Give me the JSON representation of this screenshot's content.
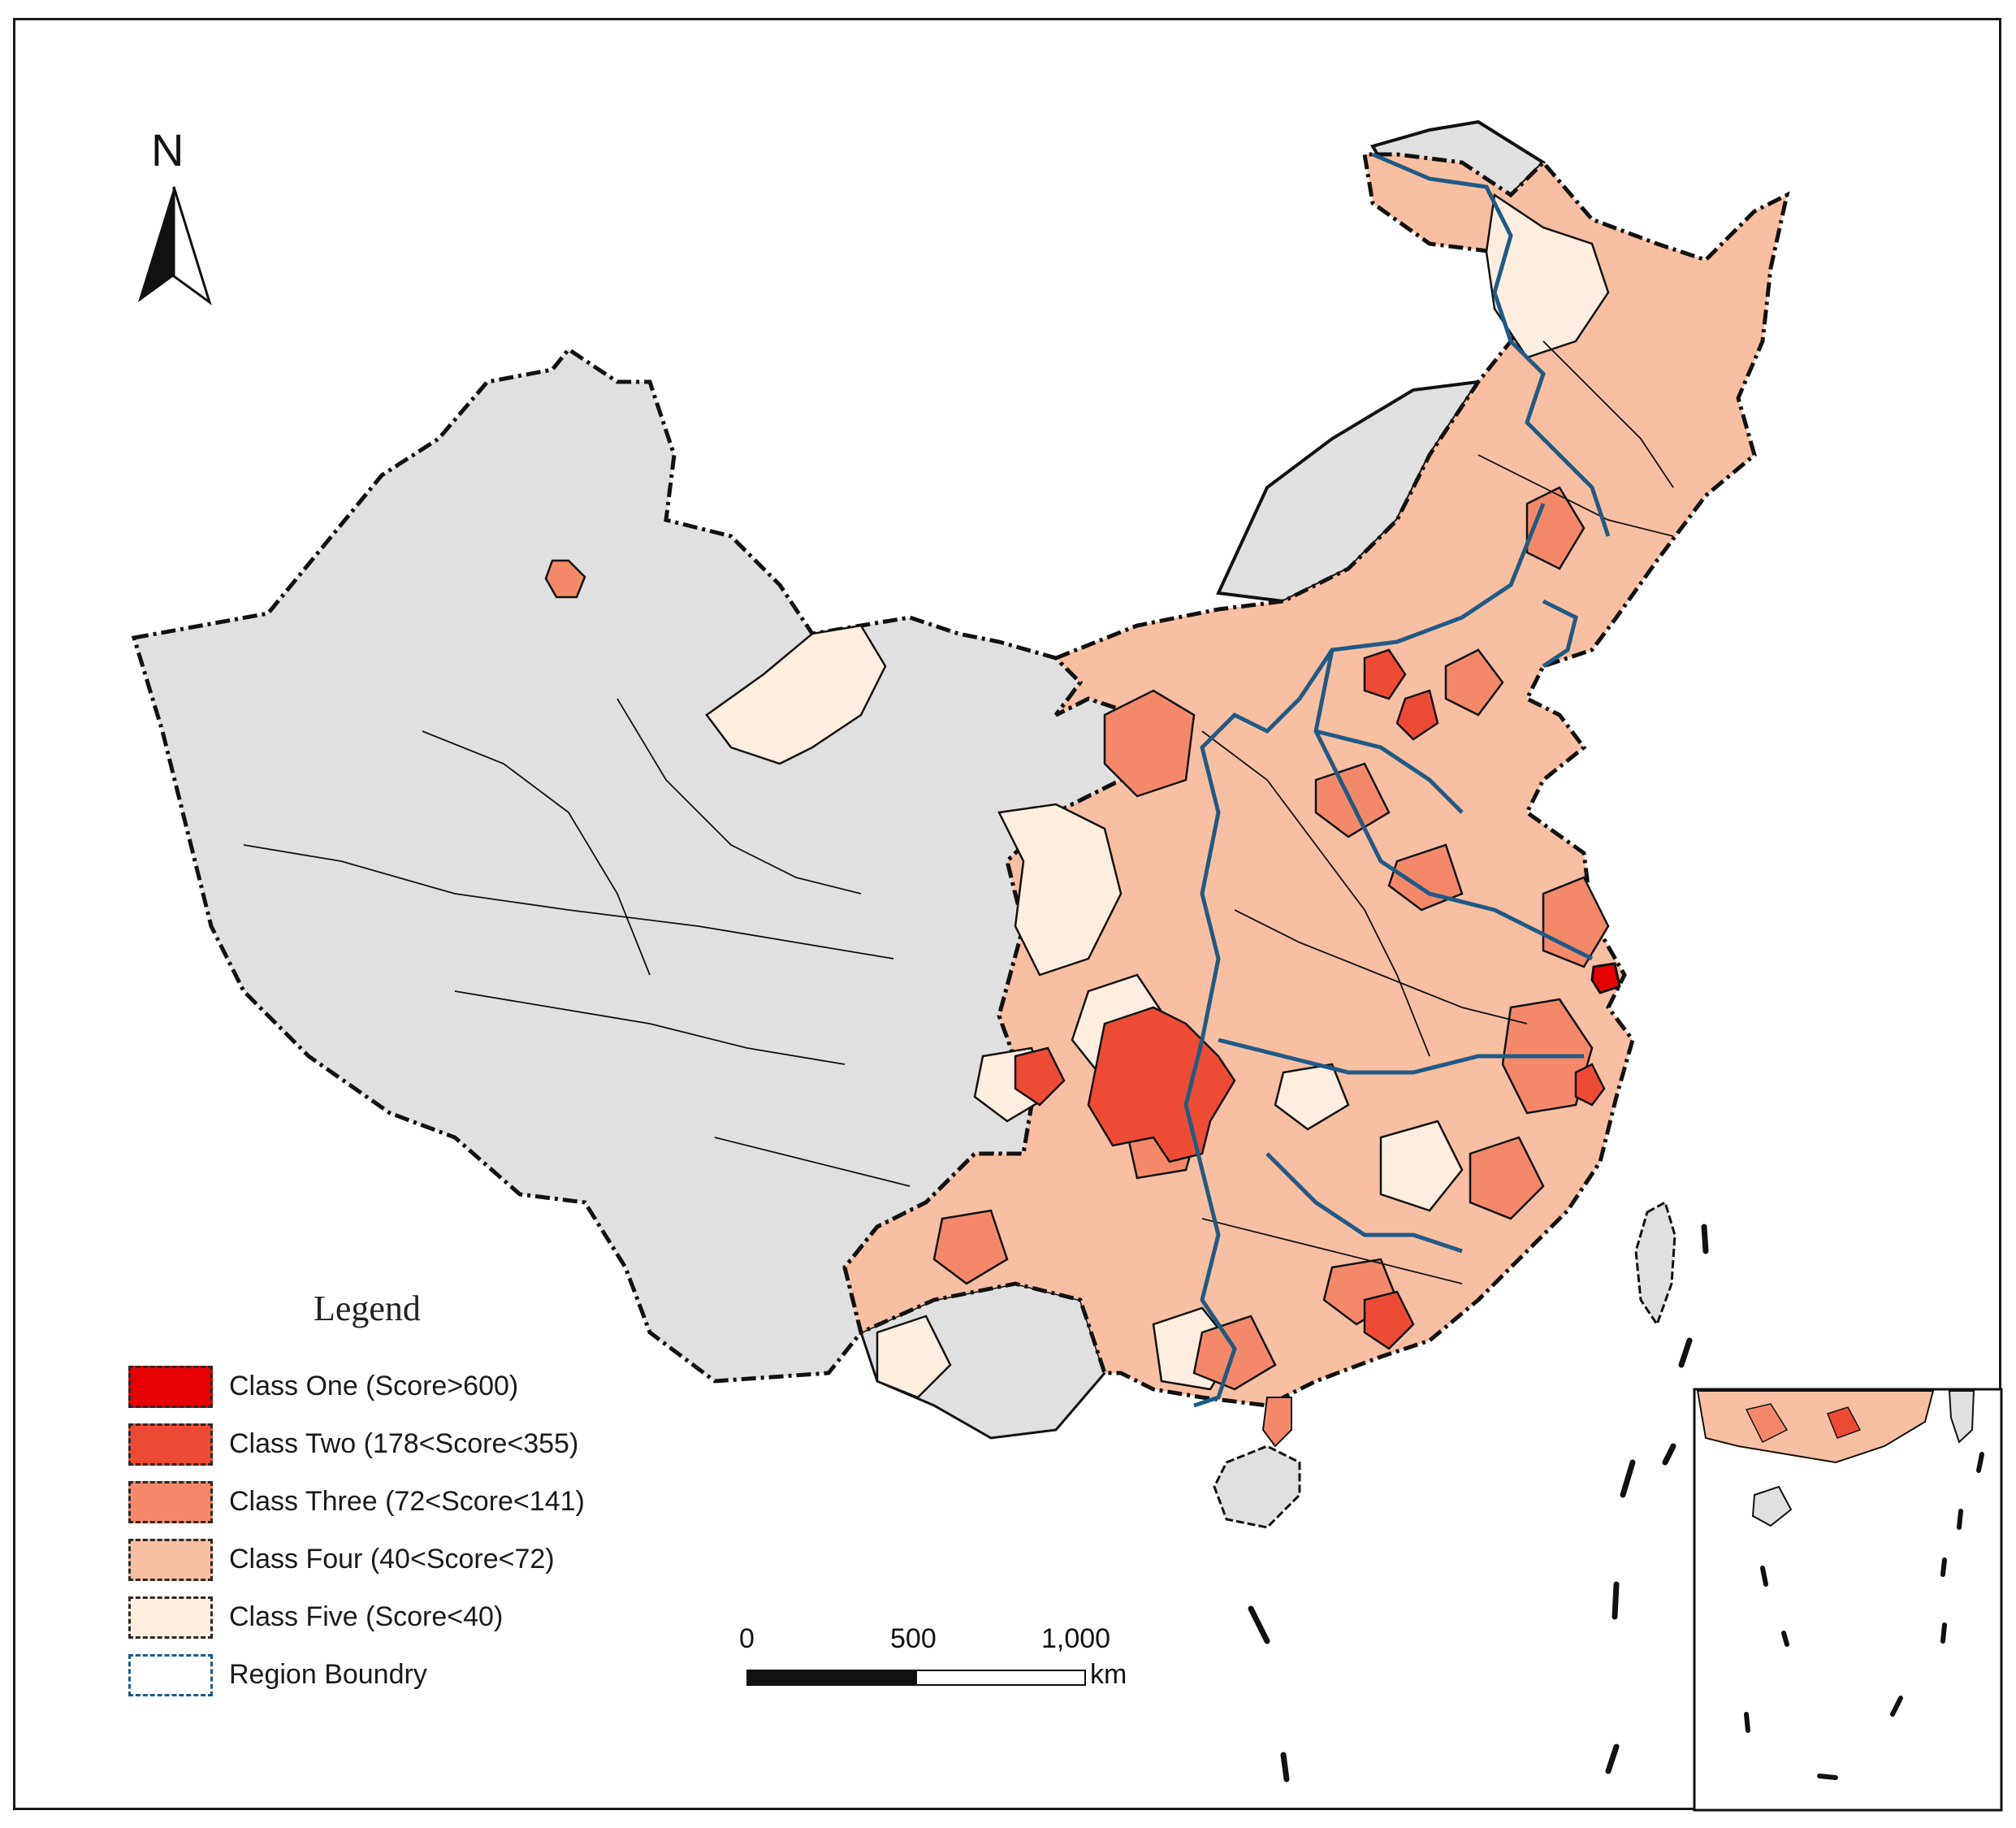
{
  "legend": {
    "title": "Legend",
    "items": [
      {
        "label": "Class One (Score>600)",
        "color": "#e60000",
        "style": "fill"
      },
      {
        "label": "Class Two (178<Score<355)",
        "color": "#ee4b35",
        "style": "fill"
      },
      {
        "label": "Class Three (72<Score<141)",
        "color": "#f4896a",
        "style": "fill"
      },
      {
        "label": "Class Four (40<Score<72)",
        "color": "#f9bfa2",
        "style": "fill"
      },
      {
        "label": "Class Five (Score<40)",
        "color": "#fdeedf",
        "style": "fill"
      },
      {
        "label": "Region Boundry",
        "color": "#1f5a85",
        "style": "outline"
      }
    ]
  },
  "north_arrow": {
    "label": "N"
  },
  "scale_bar": {
    "ticks": [
      "0",
      "500",
      "1,000"
    ],
    "unit": "km"
  },
  "colors": {
    "no_data": "#e0e0e0",
    "boundary": "#111111",
    "region_boundary": "#1f5a85"
  },
  "icons": [
    "north-arrow-icon"
  ]
}
